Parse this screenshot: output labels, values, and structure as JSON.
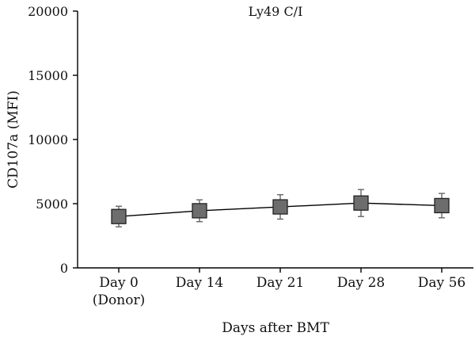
{
  "chart_data": {
    "type": "line",
    "title": "Ly49 C/I",
    "xlabel": "Days after BMT",
    "ylabel": "CD107a (MFI)",
    "categories": [
      "Day 0\n(Donor)",
      "Day 14",
      "Day 21",
      "Day 28",
      "Day 56"
    ],
    "ylim": [
      0,
      20000
    ],
    "yticks": [
      0,
      5000,
      10000,
      15000,
      20000
    ],
    "grid": false,
    "series": [
      {
        "values": [
          4000,
          4450,
          4750,
          5050,
          4850
        ],
        "error": [
          800,
          850,
          950,
          1050,
          950
        ],
        "color": "#6d6d6d"
      }
    ]
  }
}
